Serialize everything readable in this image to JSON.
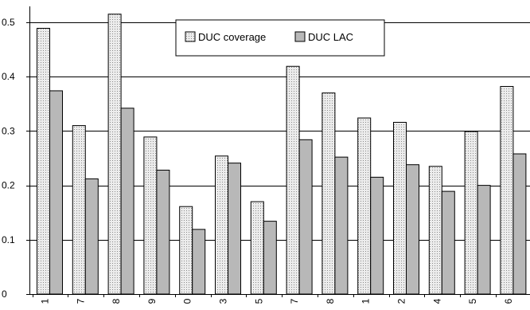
{
  "chart_data": {
    "type": "bar",
    "title": "",
    "xlabel": "",
    "ylabel": "",
    "categories": [
      "1",
      "7",
      "8",
      "9",
      "0",
      "3",
      "5",
      "7",
      "8",
      "1",
      "2",
      "4",
      "5",
      "6"
    ],
    "series": [
      {
        "name": "DUC coverage",
        "values": [
          0.489,
          0.31,
          0.515,
          0.289,
          0.161,
          0.254,
          0.17,
          0.419,
          0.37,
          0.324,
          0.316,
          0.235,
          0.299,
          0.382
        ]
      },
      {
        "name": "DUC LAC",
        "values": [
          0.374,
          0.212,
          0.342,
          0.228,
          0.119,
          0.241,
          0.134,
          0.284,
          0.252,
          0.215,
          0.238,
          0.189,
          0.2,
          0.258
        ]
      }
    ],
    "ylim": [
      0,
      0.5
    ],
    "yticks": [
      "0",
      "0.1",
      "0.2",
      "0.3",
      "0.4",
      "0.5"
    ],
    "grid": true,
    "legend_position": "top-center",
    "colors": {
      "coverage_fill": "#ececec",
      "coverage_dots": "#8a8a8a",
      "lac_fill": "#b8b8b8",
      "bar_border": "#000000",
      "gridline": "#000000"
    }
  }
}
